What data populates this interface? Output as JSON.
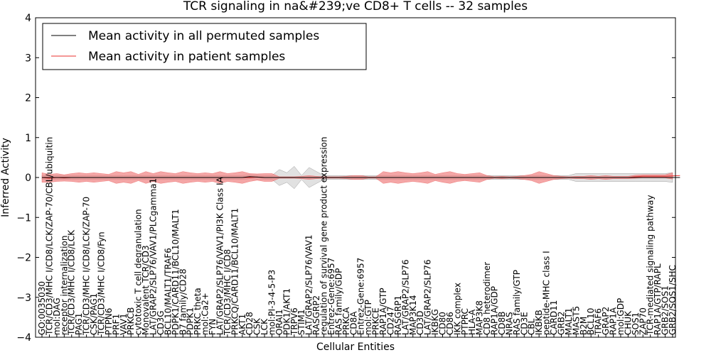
{
  "chart_data": {
    "type": "area",
    "title": "TCR signaling in na&#239;ve CD8+ T cells -- 32 samples",
    "xlabel": "Cellular Entities",
    "ylabel": "Inferred Activity",
    "ylim": [
      -4,
      4
    ],
    "yticks": [
      "−4",
      "−3",
      "−2",
      "−1",
      "0",
      "1",
      "2",
      "3",
      "4"
    ],
    "ytick_values": [
      -4,
      -3,
      -2,
      -1,
      0,
      1,
      2,
      3,
      4
    ],
    "legend_position": "top-left",
    "series": [
      {
        "name": "Mean activity in all permuted samples",
        "color": "#000000",
        "band_color": "#c8c8c8"
      },
      {
        "name": "Mean activity in patient samples",
        "color": "#e8312f",
        "band_color": "#f08080"
      }
    ],
    "categories": [
      "GO:0035030",
      "TCR/CD3/MHC I/CD8/LCK/ZAP-70/CBL/ubiquitin",
      "mol:DAG",
      "receptor internalization",
      "TCR/CD3/MHC I/CD8/LCK",
      "PAG1",
      "TCR/CD3/MHC I/CD8/LCK/ZAP-70",
      "CSK/PAG1",
      "TCR/CD3/MHC I/CD8/Fyn",
      "PTPN6",
      "PRF1",
      "VAV1",
      "PRKCB",
      "cytotoxic T cell degranulation",
      "Monovalent TCR/CD3",
      "LAT/GRAP2/SLP76/VAV1/PLCgamma1",
      "CD3G",
      "BCL10/MALT1/TRAF6",
      "PDPK1/CARD11/BCL10/MALT1",
      "B7 family/CD28",
      "PDPK1",
      "PRKC theta",
      "mol:Ca2+",
      "FYN",
      "LAT/GRAP2/SLP76/VAV1/PI3K Class IA",
      "TCR/CD3/MHC I/CD8",
      "PRKCQ/CARD11/BCL10/MALT1",
      "AKT1",
      "CD28",
      "CSK",
      "LCK",
      "mol:PI-3-4-5-P3",
      "ORAI1",
      "PDK1/AKT1",
      "TRPV6",
      "STIM1",
      "LAT/GRAP2/SLP76/VAV1",
      "RASGRP2",
      "regulation of survival gene product expression",
      "Entrez-Gene:6957",
      "RAS family/GDP",
      "PRKCA",
      "CD8A",
      "Entrez-Gene:6957",
      "mol:GTP",
      "PRKCE",
      "RAP1A/GTP",
      "CD247",
      "RASGRP1",
      "LAT/GRAP2/SLP76",
      "MAP3K14",
      "CD3D",
      "LAT/GRAP2/SLP76",
      "IKBKG",
      "CD80",
      "CD86",
      "IKK complex",
      "PTPRC",
      "HLA-A",
      "MAP3K8",
      "CD8 heterodimer",
      "RAP1A/GDP",
      "CD8B",
      "NRAS",
      "RAS family/GTP",
      "CD3E",
      "CBL",
      "IKBKB",
      "peptide-MHC class I",
      "CARD11",
      "GRB2",
      "MALT1",
      "MAST5",
      "B2M",
      "BCL10",
      "TRAF6",
      "GRAP2",
      "RAP1A",
      "mol:GDP",
      "CHUK",
      "SOS1",
      "ZAP70",
      "TCR-mediated signaling pathway",
      "RAP1A/GTP/RAPL",
      "GRB2/SOS1",
      "GRB2/SOS1/SHC"
    ],
    "patient_mean": [
      0.0,
      -0.02,
      0.0,
      -0.01,
      0.0,
      0.0,
      0.0,
      0.0,
      0.0,
      0.0,
      0.0,
      0.0,
      0.0,
      0.0,
      0.0,
      0.0,
      0.0,
      0.0,
      0.0,
      0.0,
      0.0,
      0.0,
      0.0,
      0.0,
      0.0,
      0.0,
      0.0,
      0.0,
      0.0,
      0.01,
      0.0,
      0.0,
      0.0,
      0.0,
      0.0,
      0.0,
      0.0,
      0.0,
      0.0,
      0.0,
      0.0,
      0.0,
      0.0,
      0.0,
      0.0,
      0.0,
      0.0,
      0.0,
      0.0,
      0.0,
      0.0,
      0.0,
      0.0,
      0.0,
      0.0,
      0.0,
      0.0,
      0.0,
      0.0,
      0.0,
      0.0,
      0.0,
      0.0,
      0.0,
      0.0,
      0.0,
      0.0,
      0.0,
      0.0,
      0.0,
      0.0,
      0.0,
      0.0,
      0.0,
      0.0,
      0.0,
      0.0,
      0.0,
      0.0,
      0.0,
      0.02,
      0.03,
      0.03,
      0.03,
      0.03,
      0.04,
      0.05
    ],
    "patient_spread": [
      0.12,
      0.1,
      0.1,
      0.08,
      0.1,
      0.12,
      0.1,
      0.12,
      0.1,
      0.08,
      0.15,
      0.12,
      0.15,
      0.08,
      0.15,
      0.1,
      0.15,
      0.12,
      0.1,
      0.15,
      0.12,
      0.1,
      0.12,
      0.1,
      0.15,
      0.1,
      0.12,
      0.15,
      0.1,
      0.08,
      0.1,
      0.1,
      0.02,
      0.02,
      0.02,
      0.03,
      0.05,
      0.03,
      0.02,
      0.02,
      0.02,
      0.03,
      0.05,
      0.05,
      0.02,
      0.02,
      0.15,
      0.12,
      0.15,
      0.12,
      0.1,
      0.12,
      0.15,
      0.08,
      0.12,
      0.15,
      0.1,
      0.08,
      0.1,
      0.12,
      0.05,
      0.02,
      0.03,
      0.02,
      0.03,
      0.05,
      0.08,
      0.15,
      0.1,
      0.05,
      0.03,
      0.02,
      0.03,
      0.03,
      0.05,
      0.03,
      0.05,
      0.03,
      0.03,
      0.03,
      0.04,
      0.04,
      0.04,
      0.04,
      0.04,
      0.08,
      0.08
    ],
    "permuted_mean": [
      0.0,
      0.0,
      0.0,
      0.0,
      0.0,
      0.0,
      0.0,
      0.0,
      0.0,
      0.0,
      0.0,
      0.0,
      0.0,
      0.0,
      0.0,
      0.0,
      0.0,
      0.0,
      0.0,
      0.0,
      0.0,
      0.0,
      0.0,
      0.0,
      0.0,
      0.0,
      0.0,
      0.0,
      0.02,
      0.01,
      0.0,
      0.0,
      0.0,
      0.0,
      0.0,
      0.0,
      0.0,
      0.0,
      0.0,
      0.0,
      0.0,
      0.0,
      0.0,
      0.0,
      0.0,
      0.0,
      0.0,
      0.0,
      0.0,
      0.0,
      0.0,
      0.0,
      0.0,
      0.0,
      0.0,
      0.0,
      0.0,
      0.0,
      0.0,
      0.0,
      0.0,
      0.0,
      0.0,
      0.0,
      0.0,
      0.0,
      0.0,
      0.0,
      0.0,
      0.0,
      0.0,
      0.0,
      0.0,
      0.0,
      0.0,
      0.0,
      0.0,
      0.0,
      0.0,
      0.0,
      0.0,
      0.0,
      0.0,
      0.0,
      0.0,
      0.0,
      0.0
    ],
    "permuted_spread": [
      0.05,
      0.05,
      0.05,
      0.05,
      0.05,
      0.05,
      0.05,
      0.05,
      0.05,
      0.05,
      0.05,
      0.05,
      0.05,
      0.05,
      0.05,
      0.05,
      0.05,
      0.05,
      0.05,
      0.05,
      0.05,
      0.05,
      0.05,
      0.05,
      0.05,
      0.05,
      0.05,
      0.05,
      0.05,
      0.05,
      0.05,
      0.05,
      0.2,
      0.12,
      0.28,
      0.05,
      0.25,
      0.15,
      0.05,
      0.05,
      0.05,
      0.05,
      0.05,
      0.05,
      0.05,
      0.05,
      0.05,
      0.05,
      0.05,
      0.05,
      0.05,
      0.05,
      0.05,
      0.05,
      0.05,
      0.05,
      0.05,
      0.05,
      0.05,
      0.05,
      0.05,
      0.05,
      0.05,
      0.05,
      0.05,
      0.05,
      0.05,
      0.05,
      0.05,
      0.05,
      0.05,
      0.05,
      0.1,
      0.1,
      0.1,
      0.1,
      0.1,
      0.1,
      0.1,
      0.1,
      0.1,
      0.1,
      0.1,
      0.1,
      0.1,
      0.12,
      0.12
    ]
  }
}
